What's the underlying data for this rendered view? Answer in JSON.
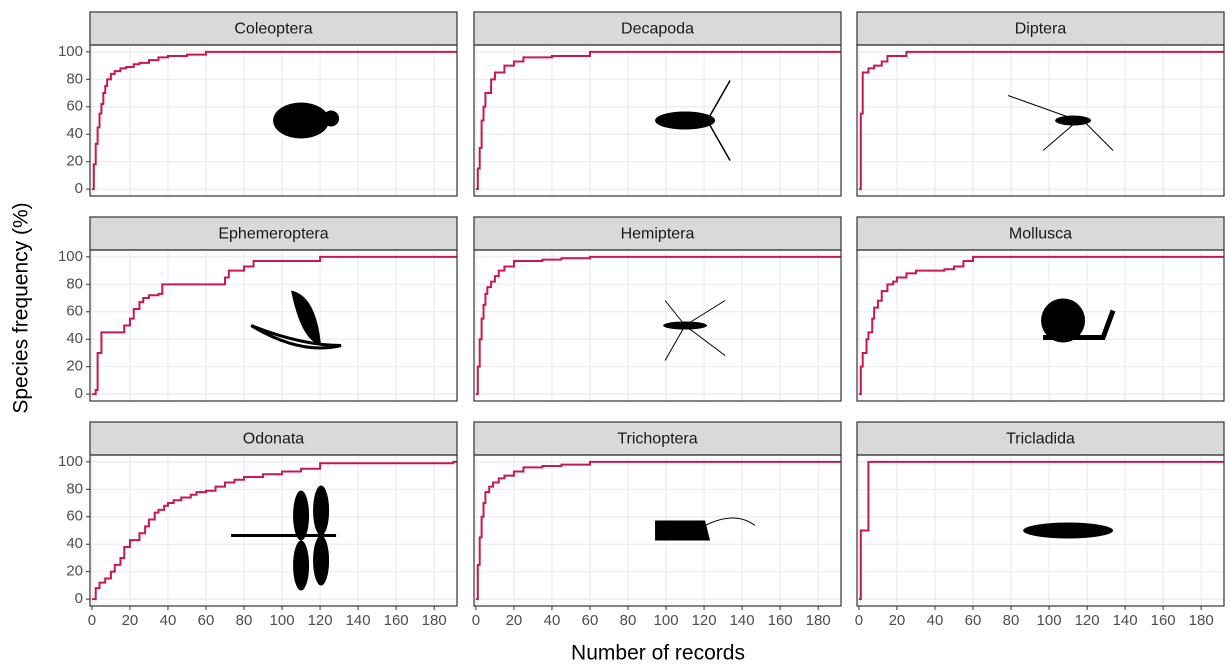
{
  "chart_data": {
    "type": "step",
    "xlabel": "Number of records",
    "ylabel": "Species frequency (%)",
    "xlim": [
      -1,
      192
    ],
    "ylim": [
      -5,
      105
    ],
    "xticks": [
      0,
      20,
      40,
      60,
      80,
      100,
      120,
      140,
      160,
      180
    ],
    "yticks": [
      0,
      20,
      40,
      60,
      80,
      100
    ],
    "grid": true,
    "color": "#c8184f",
    "panels": [
      {
        "title": "Coleoptera",
        "x": [
          0,
          1,
          2,
          3,
          4,
          5,
          6,
          7,
          8,
          10,
          12,
          15,
          18,
          22,
          25,
          30,
          35,
          40,
          50,
          60,
          192
        ],
        "values": [
          0,
          18,
          33,
          45,
          55,
          62,
          70,
          75,
          80,
          84,
          86,
          88,
          89,
          91,
          92,
          94,
          96,
          97,
          98,
          100,
          100
        ]
      },
      {
        "title": "Decapoda",
        "x": [
          0,
          1,
          2,
          3,
          4,
          5,
          8,
          10,
          15,
          20,
          25,
          40,
          60,
          192
        ],
        "values": [
          0,
          15,
          30,
          50,
          60,
          70,
          80,
          85,
          90,
          93,
          96,
          97,
          100,
          100
        ]
      },
      {
        "title": "Diptera",
        "x": [
          0,
          1,
          2,
          5,
          8,
          12,
          15,
          25,
          192
        ],
        "values": [
          0,
          55,
          85,
          88,
          90,
          93,
          97,
          100,
          100
        ]
      },
      {
        "title": "Ephemeroptera",
        "x": [
          0,
          2,
          3,
          5,
          17,
          20,
          22,
          25,
          27,
          30,
          35,
          37,
          60,
          70,
          72,
          80,
          85,
          95,
          120,
          192
        ],
        "values": [
          0,
          3,
          30,
          45,
          50,
          55,
          62,
          67,
          70,
          72,
          73,
          80,
          80,
          85,
          90,
          93,
          97,
          97,
          100,
          100
        ]
      },
      {
        "title": "Hemiptera",
        "x": [
          0,
          1,
          2,
          3,
          4,
          5,
          6,
          8,
          10,
          12,
          15,
          20,
          35,
          45,
          60,
          192
        ],
        "values": [
          0,
          20,
          40,
          55,
          65,
          73,
          78,
          82,
          86,
          90,
          93,
          97,
          98,
          99,
          100,
          100
        ]
      },
      {
        "title": "Mollusca",
        "x": [
          0,
          1,
          2,
          4,
          5,
          7,
          8,
          10,
          12,
          15,
          18,
          20,
          25,
          30,
          45,
          50,
          55,
          60,
          192
        ],
        "values": [
          0,
          20,
          30,
          40,
          45,
          55,
          63,
          68,
          75,
          80,
          82,
          85,
          88,
          90,
          91,
          93,
          97,
          100,
          100
        ]
      },
      {
        "title": "Odonata",
        "x": [
          0,
          2,
          4,
          7,
          10,
          12,
          15,
          17,
          20,
          25,
          28,
          30,
          33,
          35,
          38,
          40,
          43,
          47,
          52,
          55,
          60,
          65,
          70,
          75,
          80,
          90,
          100,
          110,
          120,
          190,
          192
        ],
        "values": [
          0,
          8,
          12,
          15,
          20,
          25,
          30,
          38,
          43,
          48,
          53,
          58,
          63,
          65,
          68,
          70,
          72,
          74,
          76,
          78,
          79,
          82,
          85,
          87,
          89,
          91,
          93,
          95,
          99,
          100,
          100
        ]
      },
      {
        "title": "Trichoptera",
        "x": [
          0,
          1,
          2,
          3,
          4,
          5,
          7,
          9,
          12,
          15,
          20,
          25,
          35,
          45,
          60,
          192
        ],
        "values": [
          0,
          25,
          45,
          60,
          70,
          78,
          82,
          85,
          88,
          90,
          93,
          96,
          97,
          98,
          100,
          100
        ]
      },
      {
        "title": "Tricladida",
        "x": [
          0,
          1,
          5,
          192
        ],
        "values": [
          0,
          50,
          100,
          100
        ]
      }
    ]
  }
}
